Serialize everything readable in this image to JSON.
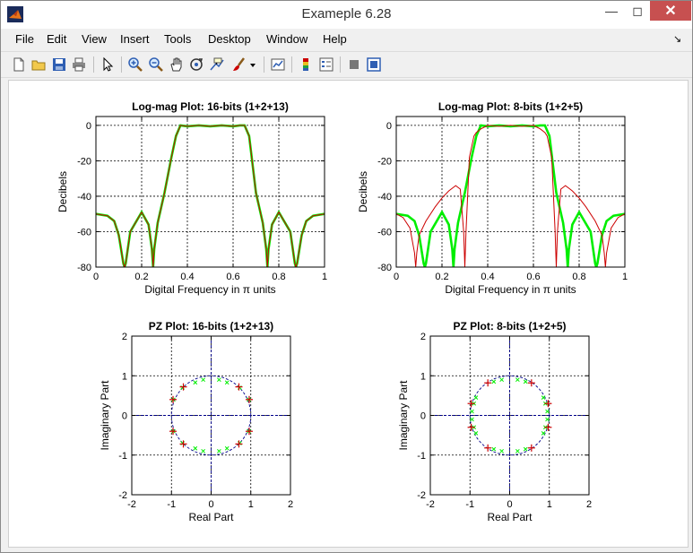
{
  "window": {
    "title": "Exameple 6.28"
  },
  "menu": [
    "File",
    "Edit",
    "View",
    "Insert",
    "Tools",
    "Desktop",
    "Window",
    "Help"
  ],
  "toolbar": {
    "icons": [
      "new-figure-icon",
      "open-file-icon",
      "save-icon",
      "print-icon",
      "pointer-icon",
      "zoom-in-icon",
      "zoom-out-icon",
      "pan-icon",
      "rotate-3d-icon",
      "data-cursor-icon",
      "brush-icon",
      "brush-menu-icon",
      "link-plot-icon",
      "colorbar-icon",
      "legend-icon",
      "hide-plot-tools-icon",
      "show-plot-tools-icon"
    ]
  },
  "colors": {
    "green": "#00ee00",
    "red": "#cc0000",
    "grid": "#000000",
    "axis_blue": "#00008b"
  },
  "chart_data": [
    {
      "type": "line",
      "title": "Log-mag Plot: 16-bits (1+2+13)",
      "xlabel": "Digital Frequency in π units",
      "ylabel": "Decibels",
      "xlim": [
        0,
        1
      ],
      "ylim": [
        -80,
        5
      ],
      "xticks": [
        "0",
        "0.2",
        "0.4",
        "0.6",
        "0.8",
        "1"
      ],
      "yticks": [
        "0",
        "-20",
        "-40",
        "-60",
        "-80"
      ],
      "grid": true,
      "series": [
        {
          "color": "green",
          "x": [
            0,
            0.05,
            0.08,
            0.1,
            0.12,
            0.125,
            0.13,
            0.15,
            0.2,
            0.23,
            0.245,
            0.25,
            0.255,
            0.27,
            0.3,
            0.33,
            0.35,
            0.37,
            0.4,
            0.45,
            0.5,
            0.55,
            0.6,
            0.63,
            0.65,
            0.67,
            0.7,
            0.73,
            0.745,
            0.75,
            0.755,
            0.77,
            0.8,
            0.85,
            0.87,
            0.875,
            0.88,
            0.9,
            0.92,
            0.95,
            1
          ],
          "y": [
            -50,
            -51,
            -54,
            -62,
            -78,
            -80,
            -78,
            -60,
            -49,
            -56,
            -70,
            -80,
            -70,
            -55,
            -38,
            -18,
            -6,
            0,
            -0.5,
            0,
            -0.5,
            0,
            -0.5,
            0,
            0,
            -6,
            -38,
            -55,
            -70,
            -80,
            -70,
            -56,
            -49,
            -60,
            -78,
            -80,
            -78,
            -62,
            -54,
            -51,
            -50
          ]
        },
        {
          "color": "red",
          "x": [
            0,
            0.05,
            0.08,
            0.1,
            0.12,
            0.125,
            0.13,
            0.15,
            0.2,
            0.23,
            0.245,
            0.25,
            0.255,
            0.27,
            0.3,
            0.33,
            0.35,
            0.37,
            0.4,
            0.45,
            0.5,
            0.55,
            0.6,
            0.63,
            0.65,
            0.67,
            0.7,
            0.73,
            0.745,
            0.75,
            0.755,
            0.77,
            0.8,
            0.85,
            0.87,
            0.875,
            0.88,
            0.9,
            0.92,
            0.95,
            1
          ],
          "y": [
            -50,
            -51,
            -54,
            -62,
            -78,
            -80,
            -78,
            -60,
            -49,
            -56,
            -70,
            -80,
            -70,
            -55,
            -38,
            -18,
            -6,
            0,
            -0.5,
            0,
            -0.5,
            0,
            -0.5,
            0,
            0,
            -6,
            -38,
            -55,
            -70,
            -80,
            -70,
            -56,
            -49,
            -60,
            -78,
            -80,
            -78,
            -62,
            -54,
            -51,
            -50
          ]
        }
      ]
    },
    {
      "type": "line",
      "title": "Log-mag Plot: 8-bits (1+2+5)",
      "xlabel": "Digital Frequency in π units",
      "ylabel": "Decibels",
      "xlim": [
        0,
        1
      ],
      "ylim": [
        -80,
        5
      ],
      "xticks": [
        "0",
        "0.2",
        "0.4",
        "0.6",
        "0.8",
        "1"
      ],
      "yticks": [
        "0",
        "-20",
        "-40",
        "-60",
        "-80"
      ],
      "grid": true,
      "series": [
        {
          "color": "green",
          "x": [
            0,
            0.05,
            0.08,
            0.1,
            0.12,
            0.125,
            0.13,
            0.15,
            0.2,
            0.23,
            0.245,
            0.25,
            0.255,
            0.27,
            0.3,
            0.33,
            0.35,
            0.37,
            0.4,
            0.45,
            0.5,
            0.55,
            0.6,
            0.63,
            0.65,
            0.67,
            0.7,
            0.73,
            0.745,
            0.75,
            0.755,
            0.77,
            0.8,
            0.85,
            0.87,
            0.875,
            0.88,
            0.9,
            0.92,
            0.95,
            1
          ],
          "y": [
            -50,
            -51,
            -54,
            -62,
            -78,
            -80,
            -78,
            -60,
            -49,
            -56,
            -70,
            -80,
            -70,
            -55,
            -38,
            -18,
            -6,
            0,
            -0.5,
            0,
            -0.5,
            0,
            -0.5,
            0,
            0,
            -6,
            -38,
            -55,
            -70,
            -80,
            -70,
            -56,
            -49,
            -60,
            -78,
            -80,
            -78,
            -62,
            -54,
            -51,
            -50
          ]
        },
        {
          "color": "red",
          "x": [
            0,
            0.03,
            0.06,
            0.08,
            0.085,
            0.09,
            0.1,
            0.13,
            0.17,
            0.2,
            0.23,
            0.26,
            0.28,
            0.295,
            0.3,
            0.305,
            0.32,
            0.34,
            0.35,
            0.37,
            0.4,
            0.45,
            0.5,
            0.55,
            0.6,
            0.63,
            0.65,
            0.66,
            0.68,
            0.695,
            0.7,
            0.705,
            0.72,
            0.74,
            0.77,
            0.8,
            0.83,
            0.87,
            0.9,
            0.91,
            0.915,
            0.92,
            0.94,
            0.97,
            1
          ],
          "y": [
            -50,
            -52,
            -58,
            -72,
            -80,
            -72,
            -62,
            -54,
            -46,
            -41,
            -37,
            -34,
            -36,
            -60,
            -80,
            -60,
            -18,
            -6,
            -4,
            -2,
            0,
            -0.5,
            0,
            -0.5,
            0,
            -2,
            -4,
            -6,
            -18,
            -60,
            -80,
            -60,
            -36,
            -34,
            -37,
            -41,
            -46,
            -54,
            -62,
            -72,
            -80,
            -72,
            -58,
            -52,
            -50
          ]
        }
      ]
    },
    {
      "type": "scatter",
      "title": "PZ Plot: 16-bits (1+2+13)",
      "xlabel": "Real Part",
      "ylabel": "Imaginary Part",
      "xlim": [
        -2,
        2
      ],
      "ylim": [
        -2,
        2
      ],
      "xticks": [
        "-2",
        "-1",
        "0",
        "1",
        "2"
      ],
      "yticks": [
        "2",
        "1",
        "0",
        "-1",
        "-2"
      ],
      "grid": true,
      "unit_circle": true,
      "series": [
        {
          "marker": "x",
          "color": "green",
          "points": [
            [
              0.2,
              0.9
            ],
            [
              -0.2,
              0.9
            ],
            [
              0.4,
              0.83
            ],
            [
              -0.4,
              0.83
            ],
            [
              0.2,
              -0.9
            ],
            [
              -0.2,
              -0.9
            ],
            [
              0.4,
              -0.83
            ],
            [
              -0.4,
              -0.83
            ],
            [
              0.72,
              0.7
            ],
            [
              -0.72,
              0.7
            ],
            [
              0.72,
              -0.7
            ],
            [
              -0.72,
              -0.7
            ],
            [
              0.95,
              0.4
            ],
            [
              -0.95,
              0.4
            ],
            [
              0.95,
              -0.4
            ],
            [
              -0.95,
              -0.4
            ]
          ]
        },
        {
          "marker": "+",
          "color": "red",
          "points": [
            [
              0.7,
              0.72
            ],
            [
              -0.7,
              0.72
            ],
            [
              0.7,
              -0.72
            ],
            [
              -0.7,
              -0.72
            ],
            [
              0.96,
              0.4
            ],
            [
              -0.96,
              0.4
            ],
            [
              0.96,
              -0.4
            ],
            [
              -0.96,
              -0.4
            ]
          ]
        }
      ]
    },
    {
      "type": "scatter",
      "title": "PZ Plot: 8-bits (1+2+5)",
      "xlabel": "Real Part",
      "ylabel": "Imaginary Part",
      "xlim": [
        -2,
        2
      ],
      "ylim": [
        -2,
        2
      ],
      "xticks": [
        "-2",
        "-1",
        "0",
        "1",
        "2"
      ],
      "yticks": [
        "2",
        "1",
        "0",
        "-1",
        "-2"
      ],
      "grid": true,
      "unit_circle": true,
      "series": [
        {
          "marker": "x",
          "color": "green",
          "points": [
            [
              0.2,
              0.9
            ],
            [
              -0.2,
              0.9
            ],
            [
              0.4,
              0.85
            ],
            [
              -0.4,
              0.85
            ],
            [
              0.2,
              -0.9
            ],
            [
              -0.2,
              -0.9
            ],
            [
              0.4,
              -0.85
            ],
            [
              -0.4,
              -0.85
            ],
            [
              0.85,
              0.45
            ],
            [
              -0.85,
              0.45
            ],
            [
              0.85,
              -0.45
            ],
            [
              -0.85,
              -0.45
            ],
            [
              0.95,
              0.1
            ],
            [
              -0.95,
              0.1
            ],
            [
              0.95,
              -0.1
            ],
            [
              -0.95,
              -0.1
            ],
            [
              0.9,
              0.3
            ],
            [
              -0.9,
              0.3
            ],
            [
              0.9,
              -0.3
            ],
            [
              -0.9,
              -0.3
            ]
          ]
        },
        {
          "marker": "+",
          "color": "red",
          "points": [
            [
              0.55,
              0.82
            ],
            [
              -0.55,
              0.82
            ],
            [
              0.55,
              -0.82
            ],
            [
              -0.55,
              -0.82
            ],
            [
              0.97,
              0.3
            ],
            [
              -0.97,
              0.3
            ],
            [
              0.97,
              -0.3
            ],
            [
              -0.97,
              -0.3
            ]
          ]
        }
      ]
    }
  ]
}
